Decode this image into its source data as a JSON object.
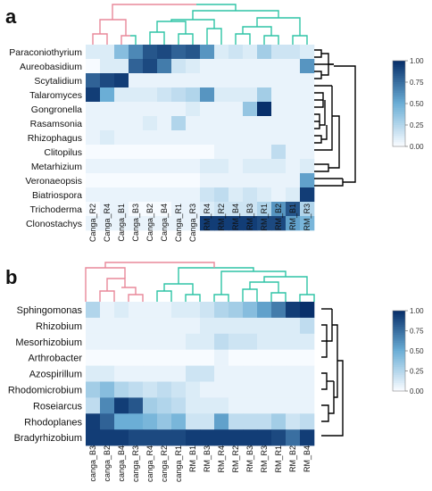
{
  "colors": {
    "cmap_low": "#f7fbff",
    "cmap_high": "#08306b",
    "canga_dendrogram": "#e8889a",
    "rm_dendrogram": "#2ec4a6",
    "row_dendrogram": "#000000"
  },
  "colorbar_ticks": [
    "1.00",
    "0.75",
    "0.50",
    "0.25",
    "0.00"
  ],
  "chart_data": [
    {
      "type": "heatmap",
      "panel_label": "a",
      "rows": [
        "Paraconiothyrium",
        "Aureobasidium",
        "Scytalidium",
        "Talaromyces",
        "Gongronella",
        "Rasamsonia",
        "Rhizophagus",
        "Clitopilus",
        "Metarhizium",
        "Veronaeopsis",
        "Biatriospora",
        "Trichoderma",
        "Clonostachys"
      ],
      "columns": [
        "Canga_R2",
        "Canga_R4",
        "Canga_B1",
        "Canga_B3",
        "Canga_B2",
        "Canga_B4",
        "Canga_R1",
        "Canga_R3",
        "RM_R4",
        "RM_R2",
        "RM_B4",
        "RM_B3",
        "RM_R1",
        "RM_B2",
        "RM_B1",
        "RM_R3"
      ],
      "values": [
        [
          0.1,
          0.1,
          0.4,
          0.65,
          0.85,
          0.9,
          0.8,
          0.85,
          0.6,
          0.1,
          0.15,
          0.1,
          0.3,
          0.15,
          0.15,
          0.1
        ],
        [
          0.0,
          0.1,
          0.1,
          0.8,
          0.9,
          0.7,
          0.15,
          0.1,
          0.05,
          0.05,
          0.05,
          0.05,
          0.05,
          0.05,
          0.05,
          0.6
        ],
        [
          0.8,
          0.9,
          0.95,
          0.05,
          0.05,
          0.05,
          0.05,
          0.05,
          0.05,
          0.05,
          0.05,
          0.05,
          0.05,
          0.05,
          0.05,
          0.05
        ],
        [
          0.95,
          0.5,
          0.1,
          0.1,
          0.1,
          0.15,
          0.2,
          0.25,
          0.6,
          0.1,
          0.1,
          0.1,
          0.3,
          0.05,
          0.05,
          0.05
        ],
        [
          0.05,
          0.05,
          0.05,
          0.05,
          0.05,
          0.05,
          0.05,
          0.1,
          0.05,
          0.05,
          0.05,
          0.35,
          1.0,
          0.05,
          0.05,
          0.05
        ],
        [
          0.05,
          0.05,
          0.05,
          0.05,
          0.1,
          0.05,
          0.25,
          0.05,
          0.05,
          0.05,
          0.05,
          0.05,
          0.05,
          0.05,
          0.05,
          0.05
        ],
        [
          0.05,
          0.1,
          0.05,
          0.05,
          0.05,
          0.05,
          0.05,
          0.05,
          0.05,
          0.05,
          0.05,
          0.05,
          0.05,
          0.05,
          0.05,
          0.05
        ],
        [
          0.0,
          0.0,
          0.0,
          0.0,
          0.0,
          0.0,
          0.0,
          0.0,
          0.0,
          0.05,
          0.05,
          0.05,
          0.05,
          0.2,
          0.05,
          0.05
        ],
        [
          0.05,
          0.05,
          0.05,
          0.05,
          0.05,
          0.05,
          0.05,
          0.05,
          0.1,
          0.1,
          0.05,
          0.1,
          0.1,
          0.1,
          0.05,
          0.1
        ],
        [
          0.0,
          0.0,
          0.0,
          0.0,
          0.0,
          0.0,
          0.0,
          0.0,
          0.05,
          0.05,
          0.05,
          0.05,
          0.05,
          0.05,
          0.05,
          0.55
        ],
        [
          0.05,
          0.05,
          0.05,
          0.05,
          0.05,
          0.05,
          0.05,
          0.05,
          0.15,
          0.2,
          0.1,
          0.15,
          0.1,
          0.05,
          0.1,
          0.95
        ],
        [
          0.0,
          0.05,
          0.05,
          0.0,
          0.0,
          0.0,
          0.05,
          0.05,
          0.1,
          0.15,
          0.15,
          0.15,
          0.25,
          0.6,
          0.85,
          0.25
        ],
        [
          0.05,
          0.05,
          0.05,
          0.05,
          0.05,
          0.05,
          0.05,
          0.05,
          0.95,
          0.95,
          0.95,
          0.95,
          0.9,
          0.9,
          0.55,
          0.45
        ]
      ],
      "zlim": [
        0,
        1
      ]
    },
    {
      "type": "heatmap",
      "panel_label": "b",
      "rows": [
        "Sphingomonas",
        "Rhizobium",
        "Mesorhizobium",
        "Arthrobacter",
        "Azospirillum",
        "Rhodomicrobium",
        "Roseiarcus",
        "Rhodoplanes",
        "Bradyrhizobium"
      ],
      "columns": [
        "canga_B3",
        "canga_B2",
        "canga_B4",
        "canga_R3",
        "canga_R4",
        "canga_R2",
        "canga_R1",
        "RM_B1",
        "RM_B3",
        "RM_R4",
        "RM_R2",
        "RM_B3",
        "RM_R3",
        "RM_R1",
        "RM_B2",
        "RM_B4"
      ],
      "values": [
        [
          0.25,
          0.05,
          0.1,
          0.05,
          0.05,
          0.05,
          0.1,
          0.1,
          0.15,
          0.25,
          0.3,
          0.4,
          0.55,
          0.7,
          0.95,
          1.0
        ],
        [
          0.05,
          0.05,
          0.05,
          0.05,
          0.05,
          0.05,
          0.05,
          0.05,
          0.1,
          0.1,
          0.1,
          0.1,
          0.1,
          0.1,
          0.1,
          0.2
        ],
        [
          0.05,
          0.05,
          0.05,
          0.05,
          0.05,
          0.05,
          0.05,
          0.1,
          0.1,
          0.2,
          0.15,
          0.15,
          0.1,
          0.1,
          0.1,
          0.1
        ],
        [
          0.0,
          0.0,
          0.0,
          0.0,
          0.0,
          0.0,
          0.0,
          0.0,
          0.0,
          0.05,
          0.0,
          0.0,
          0.0,
          0.0,
          0.0,
          0.0
        ],
        [
          0.1,
          0.1,
          0.05,
          0.05,
          0.05,
          0.05,
          0.05,
          0.15,
          0.15,
          0.05,
          0.05,
          0.05,
          0.05,
          0.05,
          0.05,
          0.05
        ],
        [
          0.3,
          0.4,
          0.25,
          0.2,
          0.15,
          0.2,
          0.15,
          0.1,
          0.05,
          0.05,
          0.05,
          0.05,
          0.05,
          0.05,
          0.05,
          0.05
        ],
        [
          0.2,
          0.65,
          0.95,
          0.85,
          0.3,
          0.25,
          0.2,
          0.1,
          0.1,
          0.1,
          0.05,
          0.05,
          0.05,
          0.05,
          0.05,
          0.05
        ],
        [
          0.95,
          0.8,
          0.5,
          0.5,
          0.45,
          0.35,
          0.45,
          0.15,
          0.15,
          0.55,
          0.2,
          0.2,
          0.2,
          0.3,
          0.15,
          0.2
        ],
        [
          0.95,
          0.95,
          0.95,
          0.9,
          0.9,
          0.9,
          0.9,
          0.95,
          0.95,
          0.95,
          0.95,
          0.95,
          0.95,
          0.9,
          0.75,
          0.95
        ]
      ],
      "zlim": [
        0,
        1
      ]
    }
  ]
}
